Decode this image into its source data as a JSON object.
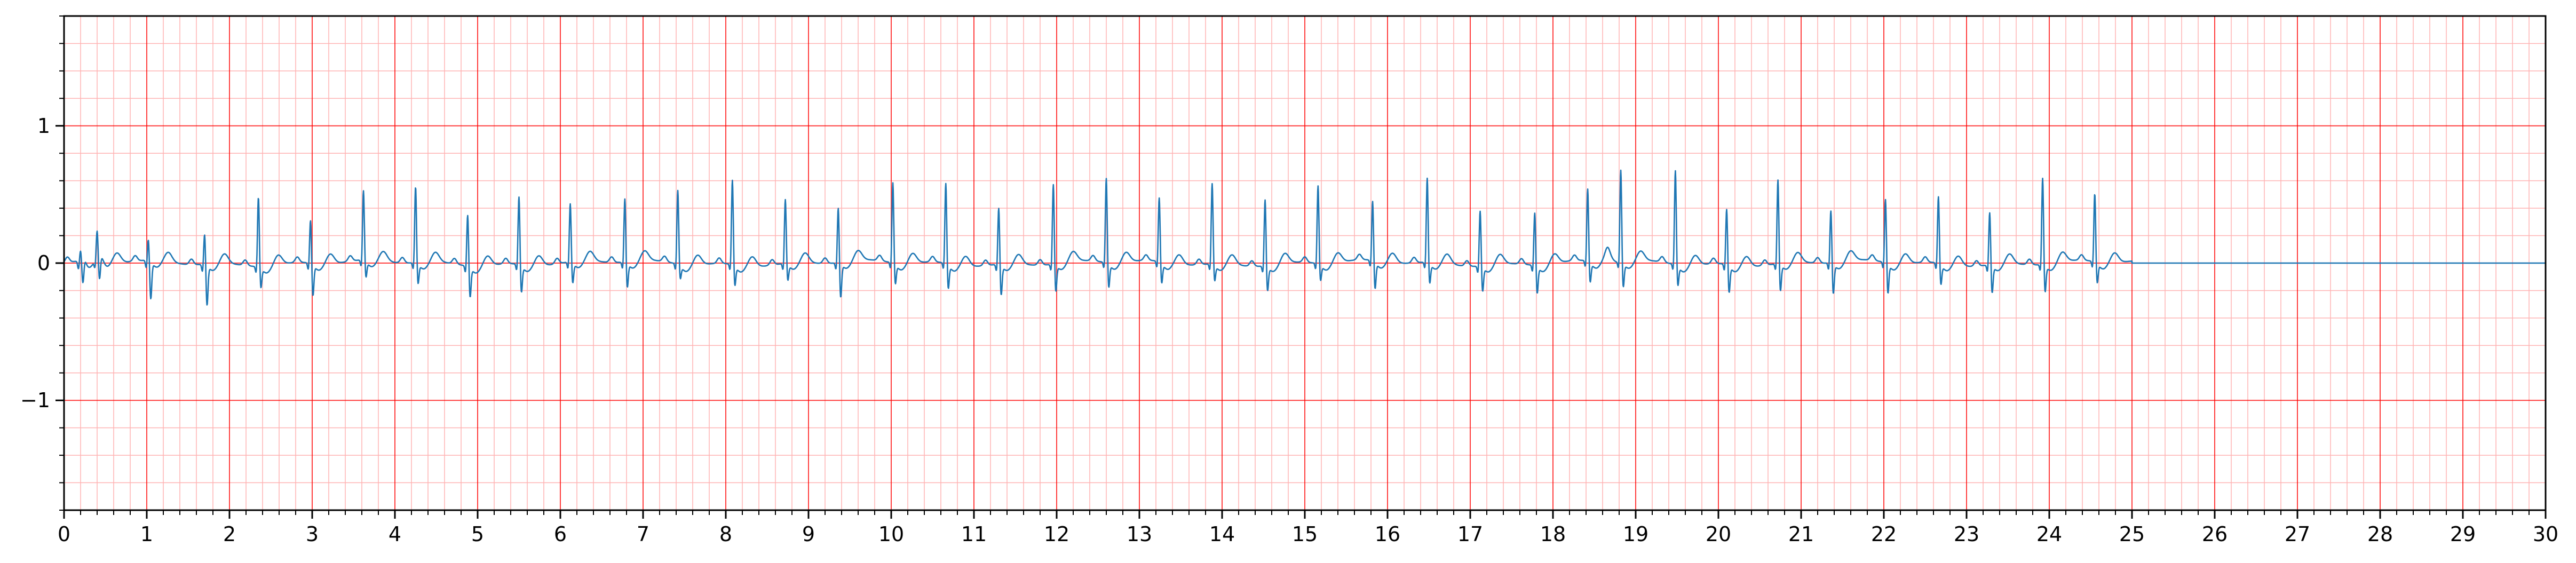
{
  "chart_data": {
    "type": "line",
    "title": "",
    "xlabel": "",
    "ylabel": "",
    "xlim": [
      0,
      30
    ],
    "ylim": [
      -1.8,
      1.8
    ],
    "grid": "ecg-paper",
    "colors": {
      "major_grid": "#ff0000",
      "minor_grid": "#ffb3b3",
      "trace": "#1f77b4",
      "axes": "#000000",
      "background": "#ffffff"
    },
    "x_ticks": [
      0,
      1,
      2,
      3,
      4,
      5,
      6,
      7,
      8,
      9,
      10,
      11,
      12,
      13,
      14,
      15,
      16,
      17,
      18,
      19,
      20,
      21,
      22,
      23,
      24,
      25,
      26,
      27,
      28,
      29,
      30
    ],
    "x_tick_labels": [
      "0",
      "1",
      "2",
      "3",
      "4",
      "5",
      "6",
      "7",
      "8",
      "9",
      "10",
      "11",
      "12",
      "13",
      "14",
      "15",
      "16",
      "17",
      "18",
      "19",
      "20",
      "21",
      "22",
      "23",
      "24",
      "25",
      "26",
      "27",
      "28",
      "29",
      "30"
    ],
    "y_ticks": [
      -1,
      0,
      1
    ],
    "y_tick_labels": [
      "−1",
      "0",
      "1"
    ],
    "signal_end": 25.0,
    "flat_after_signal": 0.0,
    "beats": [
      {
        "t": 0.2,
        "r": 0.08,
        "s": -0.18
      },
      {
        "t": 0.4,
        "r": 0.2,
        "s": -0.18
      },
      {
        "t": 1.02,
        "r": 0.17,
        "s": -0.27
      },
      {
        "t": 1.7,
        "r": 0.24,
        "s": -0.29
      },
      {
        "t": 2.35,
        "r": 0.52,
        "s": -0.15
      },
      {
        "t": 2.98,
        "r": 0.33,
        "s": -0.23
      },
      {
        "t": 3.62,
        "r": 0.52,
        "s": -0.12
      },
      {
        "t": 4.25,
        "r": 0.57,
        "s": -0.15
      },
      {
        "t": 4.88,
        "r": 0.39,
        "s": -0.22
      },
      {
        "t": 5.5,
        "r": 0.51,
        "s": -0.2
      },
      {
        "t": 6.12,
        "r": 0.44,
        "s": -0.15
      },
      {
        "t": 6.78,
        "r": 0.48,
        "s": -0.18
      },
      {
        "t": 7.42,
        "r": 0.55,
        "s": -0.1
      },
      {
        "t": 8.08,
        "r": 0.63,
        "s": -0.15
      },
      {
        "t": 8.72,
        "r": 0.48,
        "s": -0.12
      },
      {
        "t": 9.36,
        "r": 0.42,
        "s": -0.25
      },
      {
        "t": 10.02,
        "r": 0.6,
        "s": -0.15
      },
      {
        "t": 10.66,
        "r": 0.6,
        "s": -0.18
      },
      {
        "t": 11.3,
        "r": 0.43,
        "s": -0.22
      },
      {
        "t": 11.96,
        "r": 0.6,
        "s": -0.2
      },
      {
        "t": 12.6,
        "r": 0.63,
        "s": -0.18
      },
      {
        "t": 13.24,
        "r": 0.48,
        "s": -0.15
      },
      {
        "t": 13.88,
        "r": 0.6,
        "s": -0.12
      },
      {
        "t": 14.52,
        "r": 0.5,
        "s": -0.18
      },
      {
        "t": 15.16,
        "r": 0.58,
        "s": -0.12
      },
      {
        "t": 15.82,
        "r": 0.45,
        "s": -0.2
      },
      {
        "t": 16.48,
        "r": 0.63,
        "s": -0.15
      },
      {
        "t": 17.12,
        "r": 0.42,
        "s": -0.18
      },
      {
        "t": 17.78,
        "r": 0.4,
        "s": -0.2
      },
      {
        "t": 18.42,
        "r": 0.54,
        "s": -0.15
      },
      {
        "t": 18.82,
        "r": 0.69,
        "s": -0.18
      },
      {
        "t": 19.48,
        "r": 0.7,
        "s": -0.15
      },
      {
        "t": 20.1,
        "r": 0.42,
        "s": -0.2
      },
      {
        "t": 20.72,
        "r": 0.63,
        "s": -0.2
      },
      {
        "t": 21.36,
        "r": 0.4,
        "s": -0.22
      },
      {
        "t": 22.02,
        "r": 0.48,
        "s": -0.22
      },
      {
        "t": 22.66,
        "r": 0.5,
        "s": -0.15
      },
      {
        "t": 23.28,
        "r": 0.4,
        "s": -0.2
      },
      {
        "t": 23.92,
        "r": 0.65,
        "s": -0.2
      },
      {
        "t": 24.55,
        "r": 0.51,
        "s": -0.15
      }
    ]
  }
}
